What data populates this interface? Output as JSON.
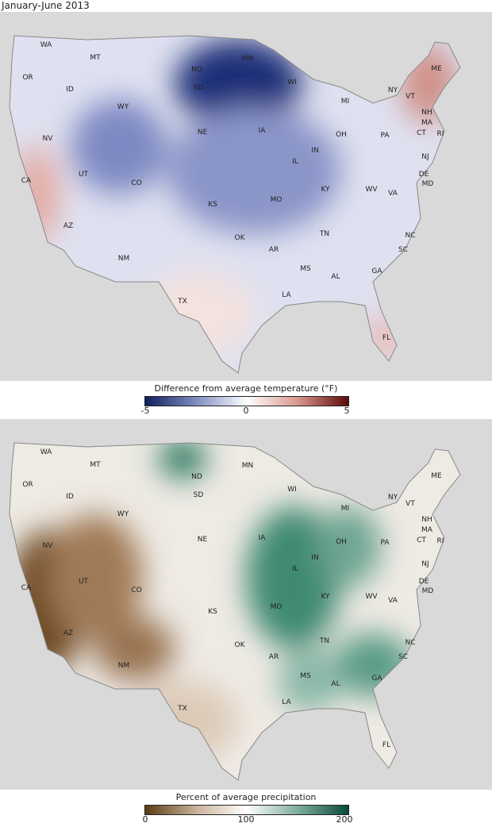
{
  "title": "January-June 2013",
  "state_labels": [
    "WA",
    "OR",
    "MT",
    "ID",
    "WY",
    "ND",
    "SD",
    "MN",
    "WI",
    "MI",
    "NY",
    "ME",
    "VT",
    "NH",
    "MA",
    "CT",
    "RI",
    "PA",
    "NJ",
    "DE",
    "MD",
    "OH",
    "IN",
    "IL",
    "IA",
    "NE",
    "NV",
    "CA",
    "UT",
    "CO",
    "KS",
    "MO",
    "KY",
    "WV",
    "VA",
    "NC",
    "TN",
    "SC",
    "GA",
    "AL",
    "MS",
    "AR",
    "LA",
    "OK",
    "TX",
    "NM",
    "AZ",
    "FL"
  ],
  "temperature_map": {
    "legend_title": "Difference from average temperature (°F)",
    "ticks": [
      "-5",
      "0",
      "5"
    ],
    "scale_colors": [
      "#0d1f5c",
      "#7f8cc0",
      "#ffffff",
      "#d9978f",
      "#5c0a0a"
    ]
  },
  "precipitation_map": {
    "legend_title": "Percent of average precipitation",
    "ticks": [
      "0",
      "100",
      "200"
    ],
    "scale_colors": [
      "#5a3a14",
      "#c9b29a",
      "#ffffff",
      "#7fae9e",
      "#0a4a3a"
    ]
  }
}
